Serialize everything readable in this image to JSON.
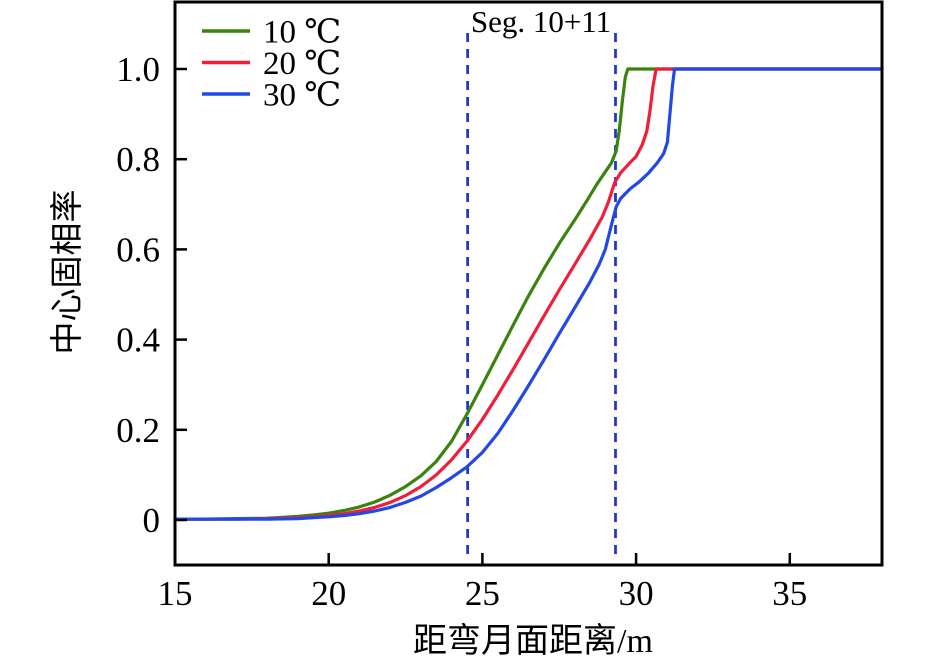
{
  "figure": {
    "background": "#ffffff",
    "frame_color": "#000000",
    "text_color": "#000000"
  },
  "chart_data": {
    "type": "line",
    "title": "Seg. 10+11",
    "xlabel": "距弯月面距离/m",
    "ylabel": "中心固相率",
    "xlim": [
      15,
      38
    ],
    "ylim": [
      -0.1,
      1.15
    ],
    "grid": false,
    "legend_position": "upper-left",
    "x_ticks": [
      20,
      25,
      30,
      35
    ],
    "x_tick_labels": [
      {
        "value": 15,
        "label": "15"
      },
      {
        "value": 20,
        "label": "20"
      },
      {
        "value": 25,
        "label": "25"
      },
      {
        "value": 30,
        "label": "30"
      },
      {
        "value": 35,
        "label": "35"
      }
    ],
    "y_ticks": [
      {
        "value": 0,
        "label": "0"
      },
      {
        "value": 0.2,
        "label": "0.2"
      },
      {
        "value": 0.4,
        "label": "0.4"
      },
      {
        "value": 0.6,
        "label": "0.6"
      },
      {
        "value": 0.8,
        "label": "0.8"
      },
      {
        "value": 1.0,
        "label": "1.0"
      }
    ],
    "series": [
      {
        "name": "10 ℃",
        "color": "#3a830f",
        "points": [
          [
            15,
            0.002
          ],
          [
            16,
            0.002
          ],
          [
            17,
            0.003
          ],
          [
            18,
            0.004
          ],
          [
            18.5,
            0.006
          ],
          [
            19,
            0.008
          ],
          [
            19.5,
            0.011
          ],
          [
            20,
            0.015
          ],
          [
            20.5,
            0.021
          ],
          [
            21,
            0.029
          ],
          [
            21.5,
            0.04
          ],
          [
            22,
            0.055
          ],
          [
            22.5,
            0.074
          ],
          [
            23,
            0.098
          ],
          [
            23.5,
            0.13
          ],
          [
            24,
            0.175
          ],
          [
            24.5,
            0.235
          ],
          [
            25,
            0.3
          ],
          [
            25.5,
            0.366
          ],
          [
            26,
            0.432
          ],
          [
            26.5,
            0.497
          ],
          [
            27,
            0.557
          ],
          [
            27.5,
            0.613
          ],
          [
            28,
            0.665
          ],
          [
            28.4,
            0.708
          ],
          [
            28.7,
            0.742
          ],
          [
            29,
            0.772
          ],
          [
            29.2,
            0.792
          ],
          [
            29.35,
            0.818
          ],
          [
            29.45,
            0.862
          ],
          [
            29.55,
            0.928
          ],
          [
            29.65,
            0.982
          ],
          [
            29.73,
            1
          ],
          [
            31,
            1
          ],
          [
            38,
            1
          ]
        ]
      },
      {
        "name": "20 ℃",
        "color": "#f21d38",
        "points": [
          [
            15,
            0.002
          ],
          [
            17,
            0.002
          ],
          [
            18,
            0.003
          ],
          [
            19,
            0.005
          ],
          [
            19.5,
            0.007
          ],
          [
            20,
            0.01
          ],
          [
            20.5,
            0.014
          ],
          [
            21,
            0.02
          ],
          [
            21.5,
            0.028
          ],
          [
            22,
            0.039
          ],
          [
            22.5,
            0.054
          ],
          [
            23,
            0.074
          ],
          [
            23.5,
            0.1
          ],
          [
            24,
            0.134
          ],
          [
            24.5,
            0.175
          ],
          [
            25,
            0.223
          ],
          [
            25.5,
            0.277
          ],
          [
            26,
            0.334
          ],
          [
            26.5,
            0.393
          ],
          [
            27,
            0.452
          ],
          [
            27.5,
            0.51
          ],
          [
            28,
            0.566
          ],
          [
            28.5,
            0.623
          ],
          [
            28.9,
            0.672
          ],
          [
            29.1,
            0.705
          ],
          [
            29.3,
            0.748
          ],
          [
            29.5,
            0.77
          ],
          [
            29.8,
            0.792
          ],
          [
            30,
            0.806
          ],
          [
            30.2,
            0.832
          ],
          [
            30.35,
            0.862
          ],
          [
            30.45,
            0.906
          ],
          [
            30.55,
            0.962
          ],
          [
            30.65,
            1
          ],
          [
            32,
            1
          ],
          [
            38,
            1
          ]
        ]
      },
      {
        "name": "30 ℃",
        "color": "#2448e6",
        "points": [
          [
            15,
            0.002
          ],
          [
            18,
            0.002
          ],
          [
            19,
            0.003
          ],
          [
            19.5,
            0.005
          ],
          [
            20,
            0.007
          ],
          [
            20.5,
            0.01
          ],
          [
            21,
            0.014
          ],
          [
            21.5,
            0.02
          ],
          [
            22,
            0.028
          ],
          [
            22.5,
            0.039
          ],
          [
            23,
            0.053
          ],
          [
            23.5,
            0.072
          ],
          [
            24,
            0.094
          ],
          [
            24.5,
            0.118
          ],
          [
            25,
            0.15
          ],
          [
            25.5,
            0.192
          ],
          [
            26,
            0.243
          ],
          [
            26.5,
            0.298
          ],
          [
            27,
            0.355
          ],
          [
            27.5,
            0.413
          ],
          [
            28,
            0.47
          ],
          [
            28.5,
            0.528
          ],
          [
            28.8,
            0.567
          ],
          [
            29,
            0.6
          ],
          [
            29.2,
            0.655
          ],
          [
            29.35,
            0.694
          ],
          [
            29.5,
            0.713
          ],
          [
            29.8,
            0.734
          ],
          [
            30.1,
            0.75
          ],
          [
            30.4,
            0.769
          ],
          [
            30.7,
            0.793
          ],
          [
            30.9,
            0.813
          ],
          [
            31.02,
            0.838
          ],
          [
            31.1,
            0.9
          ],
          [
            31.18,
            0.962
          ],
          [
            31.25,
            1
          ],
          [
            32.5,
            1
          ],
          [
            38,
            1
          ]
        ]
      }
    ],
    "annotations": {
      "dashed_vlines": {
        "x": [
          24.52,
          29.33
        ],
        "color": "#1e38c8",
        "style": "dashed",
        "label": "Seg. 10+11"
      }
    }
  }
}
